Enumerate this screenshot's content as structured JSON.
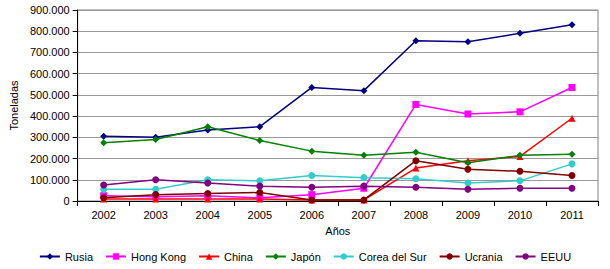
{
  "chart_data": {
    "type": "line",
    "x_label": "Años",
    "y_label": "Toneladas",
    "categories": [
      "2002",
      "2003",
      "2004",
      "2005",
      "2006",
      "2007",
      "2008",
      "2009",
      "2010",
      "2011"
    ],
    "series": [
      {
        "name": "Rusia",
        "color": "#000080",
        "marker": "diamond",
        "line_style": "solid",
        "values": [
          305000,
          300000,
          335000,
          350000,
          535000,
          520000,
          755000,
          750000,
          790000,
          830000
        ]
      },
      {
        "name": "Hong Kong",
        "color": "#ff00ff",
        "marker": "square",
        "line_style": "solid",
        "values": [
          25000,
          20000,
          25000,
          15000,
          30000,
          60000,
          455000,
          410000,
          420000,
          535000
        ]
      },
      {
        "name": "China",
        "color": "#ff0000",
        "marker": "triangle",
        "line_style": "solid",
        "values": [
          10000,
          10000,
          10000,
          10000,
          5000,
          5000,
          155000,
          190000,
          210000,
          390000
        ]
      },
      {
        "name": "Japón",
        "color": "#008000",
        "marker": "diamond",
        "line_style": "solid",
        "values": [
          275000,
          290000,
          350000,
          285000,
          235000,
          215000,
          230000,
          180000,
          215000,
          220000
        ]
      },
      {
        "name": "Corea del Sur",
        "color": "#33cccc",
        "marker": "circle",
        "line_style": "solid",
        "values": [
          55000,
          55000,
          100000,
          95000,
          120000,
          110000,
          105000,
          85000,
          95000,
          175000
        ]
      },
      {
        "name": "Ucrania",
        "color": "#800000",
        "marker": "circle",
        "line_style": "solid",
        "values": [
          15000,
          30000,
          35000,
          40000,
          5000,
          5000,
          190000,
          150000,
          140000,
          120000
        ]
      },
      {
        "name": "EEUU",
        "color": "#800080",
        "marker": "circle",
        "line_style": "solid",
        "values": [
          75000,
          100000,
          85000,
          70000,
          65000,
          70000,
          65000,
          55000,
          60000,
          60000
        ]
      }
    ],
    "ylim": [
      0,
      900000
    ],
    "yticks": [
      0,
      {
        "value": 100000,
        "label": "100.000"
      },
      {
        "value": 200000,
        "label": "200.000"
      },
      {
        "value": 300000,
        "label": "300.000"
      },
      {
        "value": 400000,
        "label": "400.000"
      },
      {
        "value": 500000,
        "label": "500.000"
      },
      {
        "value": 600000,
        "label": "600.000"
      },
      {
        "value": 700000,
        "label": "700.000"
      },
      {
        "value": 800000,
        "label": "800.000"
      },
      {
        "value": 900000,
        "label": "900.000"
      }
    ],
    "grid": true,
    "legend": "bottom"
  }
}
